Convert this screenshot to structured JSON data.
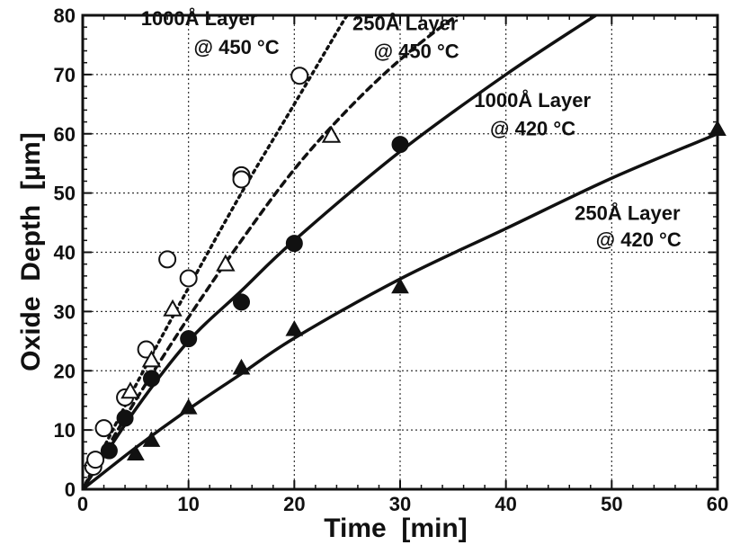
{
  "chart_data": {
    "type": "scatter",
    "xlabel": "Time  [min]",
    "ylabel": "Oxide  Depth  [µm]",
    "xlim": [
      0,
      60
    ],
    "ylim": [
      0,
      80
    ],
    "xticks": [
      0,
      10,
      20,
      30,
      40,
      50,
      60
    ],
    "yticks": [
      0,
      10,
      20,
      30,
      40,
      50,
      60,
      70,
      80
    ],
    "grid": true,
    "series": [
      {
        "name": "1000Å  Layer @ 450 °C",
        "marker": "open-circle",
        "line_style": "dotted",
        "points": [
          [
            1,
            3.8
          ],
          [
            1.2,
            5
          ],
          [
            2,
            10.3
          ],
          [
            4,
            15.5
          ],
          [
            6,
            23.6
          ],
          [
            8,
            38.8
          ],
          [
            10,
            35.6
          ],
          [
            15,
            53
          ],
          [
            15,
            52.3
          ],
          [
            20.5,
            69.8
          ]
        ],
        "fit_curve": [
          [
            0,
            0
          ],
          [
            5,
            17.5
          ],
          [
            10,
            34
          ],
          [
            15,
            50
          ],
          [
            20,
            65
          ],
          [
            24.3,
            78
          ],
          [
            25,
            80
          ]
        ]
      },
      {
        "name": "250Å  Layer @ 450 °C",
        "marker": "open-triangle",
        "line_style": "dashed",
        "points": [
          [
            4.5,
            16.5
          ],
          [
            6.5,
            21.8
          ],
          [
            8.5,
            30.4
          ],
          [
            13.5,
            38
          ],
          [
            23.5,
            59.7
          ]
        ],
        "fit_curve": [
          [
            0,
            0
          ],
          [
            5,
            15
          ],
          [
            10,
            29
          ],
          [
            15,
            42
          ],
          [
            20,
            54
          ],
          [
            25,
            64
          ],
          [
            30,
            72.5
          ],
          [
            35,
            79.5
          ],
          [
            36,
            80
          ]
        ]
      },
      {
        "name": "1000Å  Layer @ 420 °C",
        "marker": "filled-circle",
        "line_style": "solid",
        "points": [
          [
            2.5,
            6.5
          ],
          [
            4,
            12
          ],
          [
            6.5,
            18.7
          ],
          [
            10,
            25.4
          ],
          [
            15,
            31.6
          ],
          [
            20,
            41.5
          ],
          [
            30,
            58.2
          ]
        ],
        "fit_curve": [
          [
            0,
            0
          ],
          [
            5,
            13.5
          ],
          [
            10,
            25
          ],
          [
            15,
            33.5
          ],
          [
            20,
            42
          ],
          [
            30,
            57
          ],
          [
            40,
            70
          ],
          [
            48.5,
            80
          ]
        ]
      },
      {
        "name": "250Å  Layer @ 420 °C",
        "marker": "filled-triangle",
        "line_style": "solid",
        "points": [
          [
            5,
            6
          ],
          [
            6.5,
            8.3
          ],
          [
            10,
            13.8
          ],
          [
            15,
            20.5
          ],
          [
            20,
            27
          ],
          [
            30,
            34.2
          ],
          [
            60,
            60.8
          ]
        ],
        "fit_curve": [
          [
            0,
            0
          ],
          [
            5,
            7
          ],
          [
            10,
            13.5
          ],
          [
            15,
            19.5
          ],
          [
            20,
            25.5
          ],
          [
            30,
            35.5
          ],
          [
            40,
            44
          ],
          [
            50,
            52.5
          ],
          [
            60,
            60
          ]
        ]
      }
    ],
    "annotations": [
      {
        "id": "a1",
        "line1": "1000Å  Layer",
        "line2": "@ 450 °C",
        "pos": [
          5.5,
          78.3
        ],
        "pos2": [
          10.5,
          73.5
        ]
      },
      {
        "id": "a2",
        "line1": "250Å  Layer",
        "line2": "@ 450 °C",
        "pos": [
          25.5,
          77.5
        ],
        "pos2": [
          27.5,
          72.8
        ]
      },
      {
        "id": "a3",
        "line1": "1000Å  Layer",
        "line2": "@ 420 °C",
        "pos": [
          37,
          64.5
        ],
        "pos2": [
          38.5,
          59.7
        ]
      },
      {
        "id": "a4",
        "line1": "250Å  Layer",
        "line2": "@ 420 °C",
        "pos": [
          46.5,
          45.5
        ],
        "pos2": [
          48.5,
          41
        ]
      }
    ]
  }
}
